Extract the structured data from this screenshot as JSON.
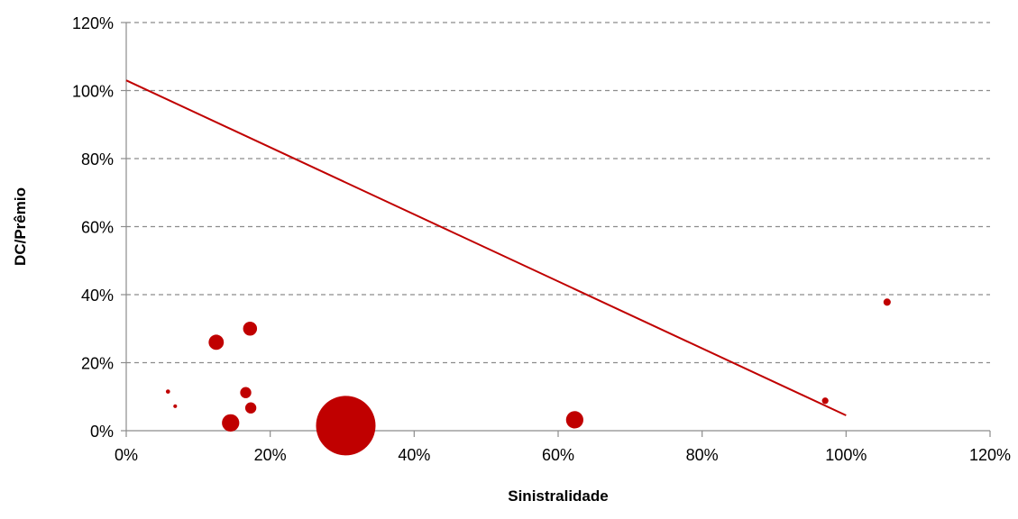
{
  "chart_data": {
    "type": "scatter",
    "title": "",
    "xlabel": "Sinistralidade",
    "ylabel": "DC/Prêmio",
    "xlim": [
      0,
      120
    ],
    "ylim": [
      0,
      120
    ],
    "x_ticks": [
      "0%",
      "20%",
      "40%",
      "60%",
      "80%",
      "100%",
      "120%"
    ],
    "y_ticks": [
      "0%",
      "20%",
      "40%",
      "60%",
      "80%",
      "100%",
      "120%"
    ],
    "grid": "horizontal-dashed",
    "colors": {
      "marker": "#C00000",
      "line": "#C00000",
      "grid": "#8c8c8c",
      "axis": "#8c8c8c"
    },
    "bubble_sizes_relative": true,
    "series": [
      {
        "type": "bubble",
        "points": [
          {
            "x": 30.5,
            "y": 1.5,
            "size": 100
          },
          {
            "x": 62.3,
            "y": 3.2,
            "size": 8.5
          },
          {
            "x": 14.5,
            "y": 2.3,
            "size": 8.5
          },
          {
            "x": 12.5,
            "y": 26.0,
            "size": 6.5
          },
          {
            "x": 17.2,
            "y": 30.0,
            "size": 5.5
          },
          {
            "x": 16.6,
            "y": 11.2,
            "size": 3.5
          },
          {
            "x": 17.3,
            "y": 6.7,
            "size": 3.5
          },
          {
            "x": 105.7,
            "y": 37.8,
            "size": 1.5
          },
          {
            "x": 97.1,
            "y": 8.8,
            "size": 1.2
          },
          {
            "x": 5.8,
            "y": 11.5,
            "size": 0.5
          },
          {
            "x": 6.8,
            "y": 7.2,
            "size": 0.4
          }
        ]
      },
      {
        "type": "line",
        "points": [
          {
            "x": 0,
            "y": 103.0
          },
          {
            "x": 100,
            "y": 4.5
          }
        ]
      }
    ]
  }
}
